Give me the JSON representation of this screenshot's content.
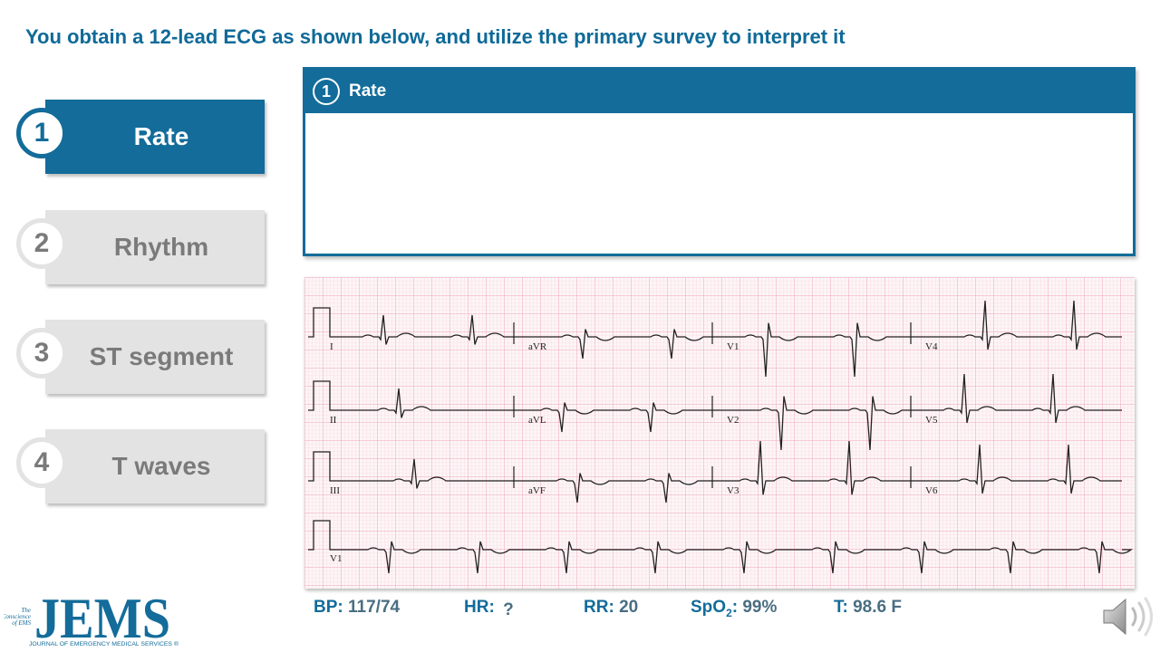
{
  "title": "You obtain a 12-lead ECG as shown below, and utilize the primary survey to interpret it",
  "steps": [
    {
      "num": "1",
      "label": "Rate"
    },
    {
      "num": "2",
      "label": "Rhythm"
    },
    {
      "num": "3",
      "label": "ST segment"
    },
    {
      "num": "4",
      "label": "T waves"
    }
  ],
  "panel": {
    "num": "1",
    "label": "Rate"
  },
  "ecg": {
    "leads_row1": [
      "I",
      "aVR",
      "V1",
      "V4"
    ],
    "leads_row2": [
      "II",
      "aVL",
      "V2",
      "V5"
    ],
    "leads_row3": [
      "III",
      "aVF",
      "V3",
      "V6"
    ],
    "lead_row4": "V1"
  },
  "vitals": {
    "bp_label": "BP:",
    "bp_value": "117/74",
    "hr_label": "HR:",
    "hr_value": "?",
    "rr_label": "RR:",
    "rr_value": "20",
    "spo2_label_main": "SpO",
    "spo2_label_sub": "2",
    "spo2_colon": ":",
    "spo2_value": "99%",
    "t_label": "T:",
    "t_value": "98.6 F"
  },
  "logo": {
    "main": "JEMS",
    "tag1": "The",
    "tag2": "Conscience",
    "tag3": "of EMS",
    "subtitle": "JOURNAL OF EMERGENCY MEDICAL SERVICES ®"
  },
  "colors": {
    "accent": "#136c9a",
    "ecg_grid": "#f2b8c6",
    "ecg_trace": "#222222"
  },
  "icons": {
    "audio": "speaker-icon"
  }
}
